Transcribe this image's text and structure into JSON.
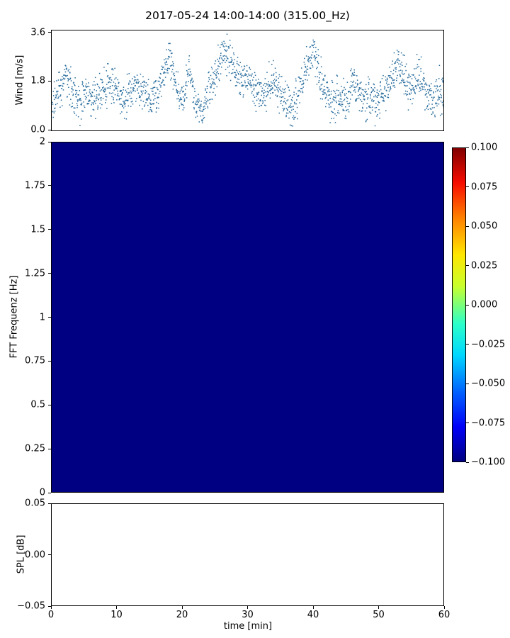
{
  "figure": {
    "title": "2017-05-24 14:00-14:00 (315.00_Hz)",
    "background_color": "#ffffff",
    "spine_color": "#000000"
  },
  "chart_data": [
    {
      "id": "wind-speed",
      "type": "scatter",
      "ylabel": "Wind [m/s]",
      "ylim": [
        -0.05,
        3.7
      ],
      "ytick_values": [
        0.0,
        1.8,
        3.6
      ],
      "ytick_labels": [
        "0.0",
        "1.8",
        "3.6"
      ],
      "xlim": [
        0,
        60
      ],
      "marker_color": "#266b9c",
      "points_per_minute": 30,
      "jitter_sigma": 0.35,
      "trend_x": [
        0,
        1,
        2,
        3,
        4,
        5,
        6,
        7,
        8,
        9,
        10,
        11,
        12,
        13,
        14,
        15,
        16,
        17,
        18,
        19,
        20,
        21,
        22,
        23,
        24,
        25,
        26,
        27,
        28,
        29,
        30,
        31,
        32,
        33,
        34,
        35,
        36,
        37,
        38,
        39,
        40,
        41,
        42,
        43,
        44,
        45,
        46,
        47,
        48,
        49,
        50,
        51,
        52,
        53,
        54,
        55,
        56,
        57,
        58,
        59,
        60
      ],
      "trend_y": [
        0.9,
        1.3,
        2.0,
        1.5,
        1.0,
        1.4,
        1.2,
        1.3,
        1.5,
        1.6,
        1.5,
        1.0,
        1.6,
        1.6,
        1.4,
        1.0,
        1.2,
        2.0,
        2.9,
        1.5,
        1.0,
        2.2,
        1.0,
        0.6,
        1.5,
        2.0,
        2.8,
        2.9,
        2.1,
        1.8,
        2.0,
        1.5,
        1.2,
        1.5,
        1.8,
        1.3,
        1.0,
        0.8,
        1.5,
        2.4,
        3.0,
        2.0,
        1.3,
        1.0,
        1.2,
        1.0,
        1.8,
        1.4,
        1.0,
        1.1,
        1.2,
        1.5,
        1.8,
        2.6,
        1.8,
        1.5,
        2.0,
        1.5,
        1.0,
        1.4,
        1.2
      ],
      "description": "Dense scatter of wind-speed samples vs time; noisy band mostly 0.3-2.2 m/s with gusts reaching about 3.6 m/s near minutes 18, 26-28 and 40, and about 3.1 m/s near minute 53."
    },
    {
      "id": "fft-spectrogram",
      "type": "heatmap",
      "ylabel": "FFT Frequenz [Hz]",
      "ylim": [
        0,
        2
      ],
      "ytick_values": [
        0,
        0.25,
        0.5,
        0.75,
        1,
        1.25,
        1.5,
        1.75,
        2
      ],
      "ytick_labels": [
        "0",
        "0.25",
        "0.5",
        "0.75",
        "1",
        "1.25",
        "1.5",
        "1.75",
        "2"
      ],
      "xlim": [
        0,
        60
      ],
      "uniform_value": -0.1,
      "fill_color": "#000083",
      "colorbar": {
        "cmap": "jet",
        "vmin": -0.1,
        "vmax": 0.1,
        "tick_labels": [
          "0.100",
          "0.075",
          "0.050",
          "0.025",
          "0.000",
          "−0.025",
          "−0.050",
          "−0.075",
          "−0.100"
        ],
        "gradient": [
          {
            "pos": 0,
            "color": "#000080"
          },
          {
            "pos": 11,
            "color": "#0000f8"
          },
          {
            "pos": 22,
            "color": "#0060ff"
          },
          {
            "pos": 34,
            "color": "#00d8ff"
          },
          {
            "pos": 44,
            "color": "#2cffc9"
          },
          {
            "pos": 50,
            "color": "#7bff7a"
          },
          {
            "pos": 56,
            "color": "#c9ff2c"
          },
          {
            "pos": 66,
            "color": "#ffe600"
          },
          {
            "pos": 78,
            "color": "#ff7e00"
          },
          {
            "pos": 89,
            "color": "#f60b00"
          },
          {
            "pos": 100,
            "color": "#800000"
          }
        ]
      }
    },
    {
      "id": "spl",
      "type": "line",
      "ylabel": "SPL [dB]",
      "ylim": [
        -0.05,
        0.05
      ],
      "ytick_values": [
        0.05,
        0.0,
        -0.05
      ],
      "ytick_labels": [
        "0.05",
        "0.00",
        "−0.05"
      ],
      "xlabel": "time [min]",
      "xlim": [
        0,
        60
      ],
      "xtick_values": [
        0,
        10,
        20,
        30,
        40,
        50,
        60
      ],
      "xtick_labels": [
        "0",
        "10",
        "20",
        "30",
        "40",
        "50",
        "60"
      ],
      "x": [],
      "values": [],
      "note": "axes empty - no visible data series"
    }
  ]
}
